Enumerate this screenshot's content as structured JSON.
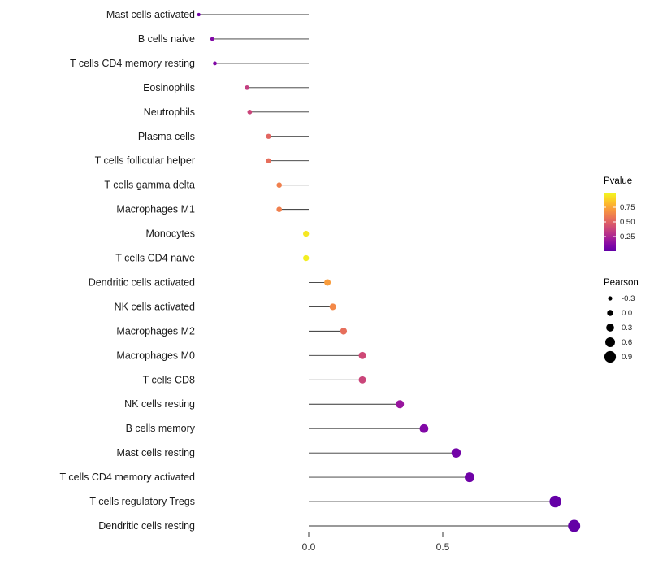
{
  "chart_data": {
    "type": "lollipop",
    "orientation": "horizontal",
    "title": "",
    "xlabel": "",
    "ylabel": "",
    "x_ticks": [
      0.0,
      0.5
    ],
    "x_tick_labels": [
      "0.0",
      "0.5"
    ],
    "xlim": [
      -0.45,
      1.05
    ],
    "size_encoding": "Pearson",
    "color_encoding": "Pvalue",
    "points": [
      {
        "label": "Mast cells activated",
        "pearson": -0.41,
        "pvalue": 0.05
      },
      {
        "label": "B cells naive",
        "pearson": -0.36,
        "pvalue": 0.1
      },
      {
        "label": "T cells CD4 memory resting",
        "pearson": -0.35,
        "pvalue": 0.1
      },
      {
        "label": "Eosinophils",
        "pearson": -0.23,
        "pvalue": 0.35
      },
      {
        "label": "Neutrophils",
        "pearson": -0.22,
        "pvalue": 0.38
      },
      {
        "label": "Plasma cells",
        "pearson": -0.15,
        "pvalue": 0.52
      },
      {
        "label": "T cells follicular helper",
        "pearson": -0.15,
        "pvalue": 0.55
      },
      {
        "label": "T cells gamma delta",
        "pearson": -0.11,
        "pvalue": 0.62
      },
      {
        "label": "Macrophages M1",
        "pearson": -0.11,
        "pvalue": 0.62
      },
      {
        "label": "Monocytes",
        "pearson": -0.01,
        "pvalue": 0.95
      },
      {
        "label": "T cells CD4 naive",
        "pearson": -0.01,
        "pvalue": 0.97
      },
      {
        "label": "Dendritic cells activated",
        "pearson": 0.07,
        "pvalue": 0.72
      },
      {
        "label": "NK cells activated",
        "pearson": 0.09,
        "pvalue": 0.65
      },
      {
        "label": "Macrophages M2",
        "pearson": 0.13,
        "pvalue": 0.55
      },
      {
        "label": "Macrophages M0",
        "pearson": 0.2,
        "pvalue": 0.4
      },
      {
        "label": "T cells CD8",
        "pearson": 0.2,
        "pvalue": 0.38
      },
      {
        "label": "NK cells resting",
        "pearson": 0.34,
        "pvalue": 0.18
      },
      {
        "label": "B cells memory",
        "pearson": 0.43,
        "pvalue": 0.1
      },
      {
        "label": "Mast cells resting",
        "pearson": 0.55,
        "pvalue": 0.05
      },
      {
        "label": "T cells CD4 memory activated",
        "pearson": 0.6,
        "pvalue": 0.04
      },
      {
        "label": "T cells regulatory Tregs",
        "pearson": 0.92,
        "pvalue": 0.01
      },
      {
        "label": "Dendritic cells resting",
        "pearson": 0.99,
        "pvalue": 0.005
      }
    ],
    "legend": {
      "pvalue_title": "Pvalue",
      "pvalue_ticks": [
        0.75,
        0.5,
        0.25
      ],
      "pearson_title": "Pearson",
      "pearson_ticks": [
        -0.3,
        0.0,
        0.3,
        0.6,
        0.9
      ]
    },
    "style": {
      "stick_color": "#333333",
      "text_color": "#1a1a1a",
      "tick_text_color": "#333333",
      "legend_dot_color": "#000000",
      "color_low": "#6202A8",
      "color_mid": "#CC4778",
      "color_high": "#F0F921"
    }
  }
}
